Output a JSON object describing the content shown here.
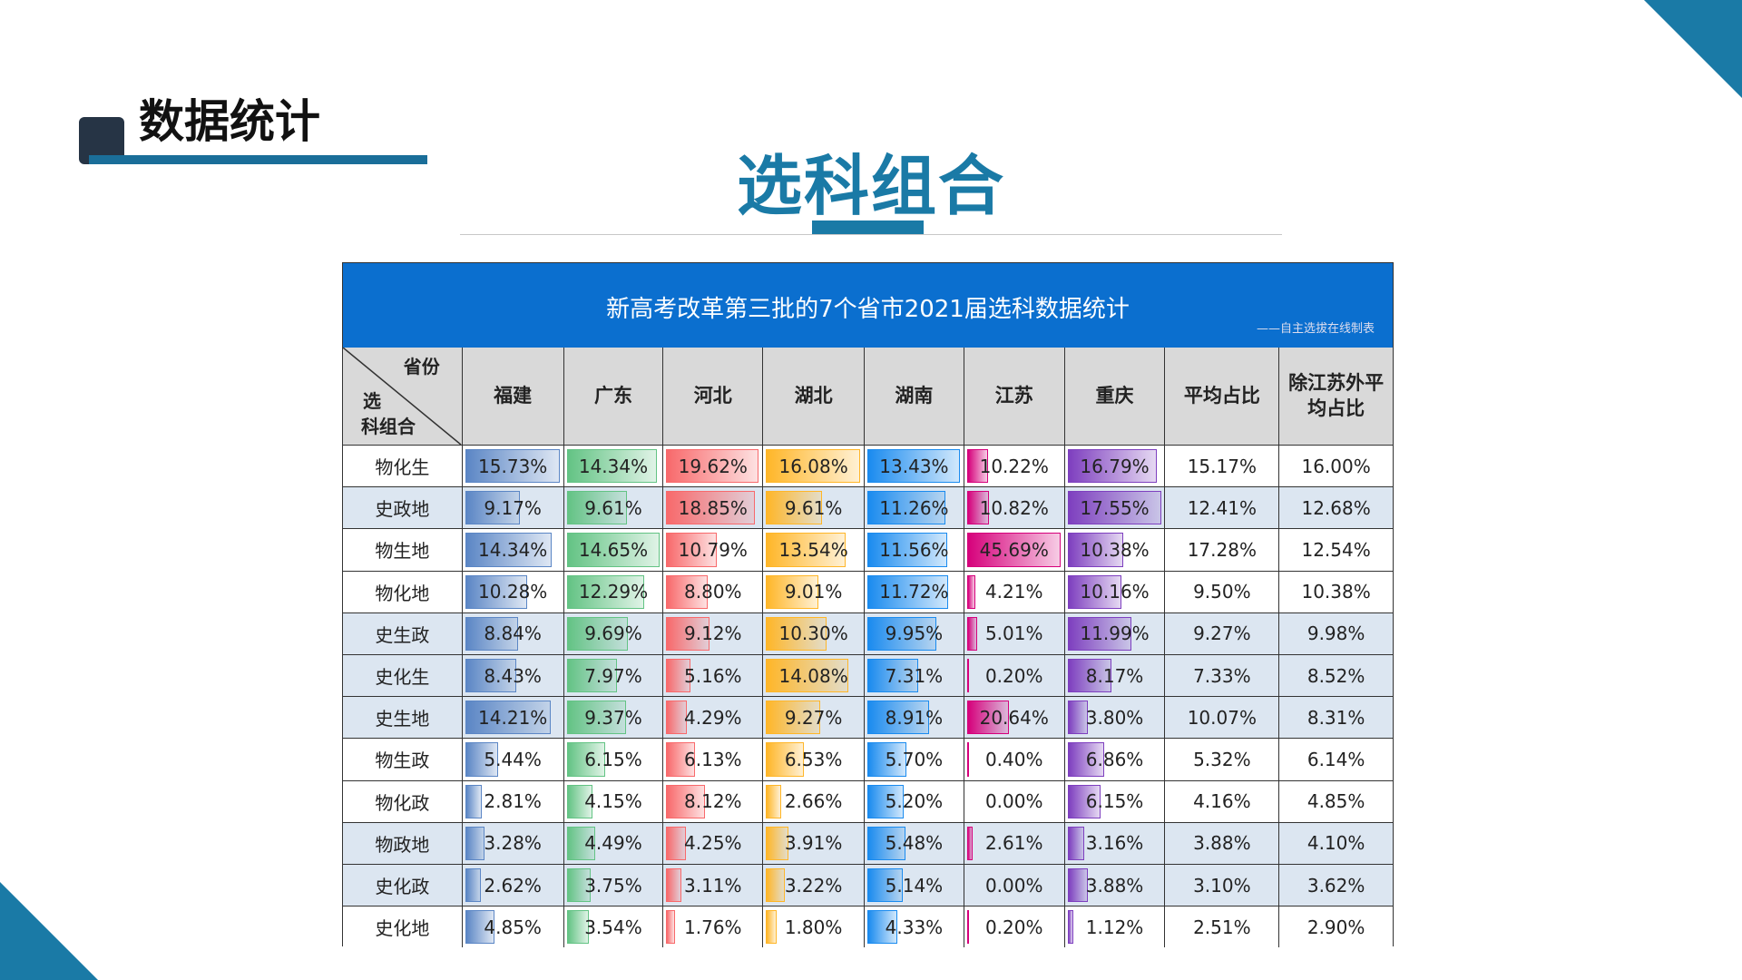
{
  "section_title": "数据统计",
  "main_title": "选科组合",
  "table": {
    "title": "新高考改革第三批的7个省市2021届选科数据统计",
    "subtitle": "——自主选拔在线制表",
    "corner_top": "省份",
    "corner_mid": "选",
    "corner_bottom": "科组合",
    "columns": [
      "福建",
      "广东",
      "河北",
      "湖北",
      "湖南",
      "江苏",
      "重庆",
      "平均占比",
      "除江苏外平均占比"
    ],
    "bar_colors": [
      "#5b86c5",
      "#63c384",
      "#f8696b",
      "#ffb628",
      "#1a8bef",
      "#d6007b",
      "#7e3fbf"
    ],
    "rows": [
      {
        "name": "物化生",
        "values": [
          "15.73%",
          "14.34%",
          "19.62%",
          "16.08%",
          "13.43%",
          "10.22%",
          "16.79%",
          "15.17%",
          "16.00%"
        ]
      },
      {
        "name": "史政地",
        "values": [
          "9.17%",
          "9.61%",
          "18.85%",
          "9.61%",
          "11.26%",
          "10.82%",
          "17.55%",
          "12.41%",
          "12.68%"
        ]
      },
      {
        "name": "物生地",
        "values": [
          "14.34%",
          "14.65%",
          "10.79%",
          "13.54%",
          "11.56%",
          "45.69%",
          "10.38%",
          "17.28%",
          "12.54%"
        ]
      },
      {
        "name": "物化地",
        "values": [
          "10.28%",
          "12.29%",
          "8.80%",
          "9.01%",
          "11.72%",
          "4.21%",
          "10.16%",
          "9.50%",
          "10.38%"
        ]
      },
      {
        "name": "史生政",
        "values": [
          "8.84%",
          "9.69%",
          "9.12%",
          "10.30%",
          "9.95%",
          "5.01%",
          "11.99%",
          "9.27%",
          "9.98%"
        ]
      },
      {
        "name": "史化生",
        "values": [
          "8.43%",
          "7.97%",
          "5.16%",
          "14.08%",
          "7.31%",
          "0.20%",
          "8.17%",
          "7.33%",
          "8.52%"
        ]
      },
      {
        "name": "史生地",
        "values": [
          "14.21%",
          "9.37%",
          "4.29%",
          "9.27%",
          "8.91%",
          "20.64%",
          "3.80%",
          "10.07%",
          "8.31%"
        ]
      },
      {
        "name": "物生政",
        "values": [
          "5.44%",
          "6.15%",
          "6.13%",
          "6.53%",
          "5.70%",
          "0.40%",
          "6.86%",
          "5.32%",
          "6.14%"
        ]
      },
      {
        "name": "物化政",
        "values": [
          "2.81%",
          "4.15%",
          "8.12%",
          "2.66%",
          "5.20%",
          "0.00%",
          "6.15%",
          "4.16%",
          "4.85%"
        ]
      },
      {
        "name": "物政地",
        "values": [
          "3.28%",
          "4.49%",
          "4.25%",
          "3.91%",
          "5.48%",
          "2.61%",
          "3.16%",
          "3.88%",
          "4.10%"
        ]
      },
      {
        "name": "史化政",
        "values": [
          "2.62%",
          "3.75%",
          "3.11%",
          "3.22%",
          "5.14%",
          "0.00%",
          "3.88%",
          "3.10%",
          "3.62%"
        ]
      },
      {
        "name": "史化地",
        "values": [
          "4.85%",
          "3.54%",
          "1.76%",
          "1.80%",
          "4.33%",
          "0.20%",
          "1.12%",
          "2.51%",
          "2.90%"
        ]
      }
    ]
  }
}
